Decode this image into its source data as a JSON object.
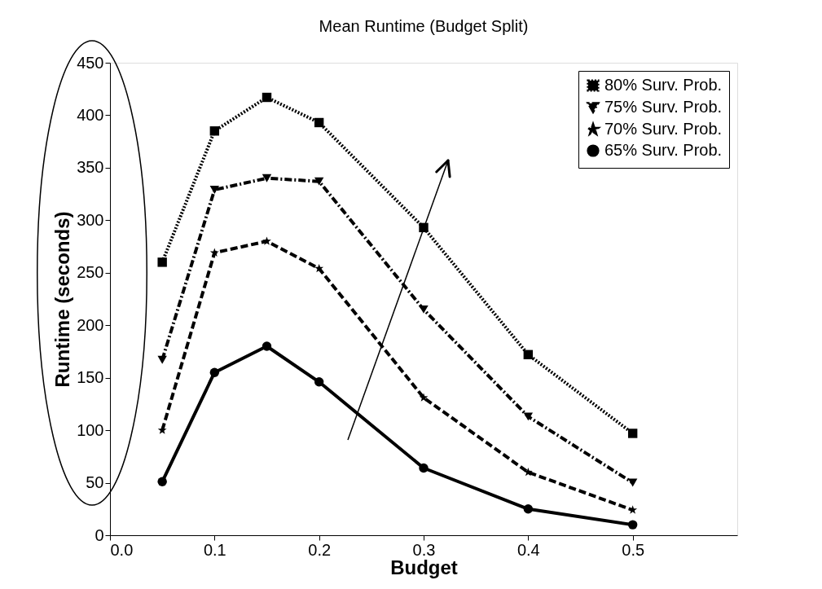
{
  "chart_data": {
    "type": "line",
    "title": "Mean Runtime (Budget Split)",
    "xlabel": "Budget",
    "ylabel": "Runtime (seconds)",
    "x": [
      0.05,
      0.1,
      0.15,
      0.2,
      0.3,
      0.4,
      0.5
    ],
    "series": [
      {
        "name": "80% Surv. Prob.",
        "color": "#000000",
        "marker": "square",
        "line_style": "dotted",
        "values": [
          260,
          385,
          417,
          393,
          293,
          172,
          97
        ]
      },
      {
        "name": "75% Surv. Prob.",
        "color": "#000000",
        "marker": "triangle",
        "line_style": "dashdot",
        "values": [
          167,
          329,
          340,
          337,
          215,
          113,
          50
        ]
      },
      {
        "name": "70% Surv. Prob.",
        "color": "#000000",
        "marker": "star",
        "line_style": "dashed",
        "values": [
          100,
          269,
          280,
          254,
          131,
          60,
          24
        ]
      },
      {
        "name": "65% Surv. Prob.",
        "color": "#000000",
        "marker": "circle",
        "line_style": "solid",
        "values": [
          51,
          155,
          180,
          146,
          64,
          25,
          10
        ]
      }
    ],
    "xlim": [
      0,
      0.6
    ],
    "xticks": [
      {
        "value": 0,
        "label": "0.0"
      },
      0.1,
      0.2,
      0.3,
      0.4,
      0.5
    ],
    "ylim": [
      0,
      450
    ],
    "yticks": [
      0,
      50,
      100,
      150,
      200,
      250,
      300,
      350,
      400,
      450
    ],
    "grid": false,
    "legend": "top right"
  }
}
